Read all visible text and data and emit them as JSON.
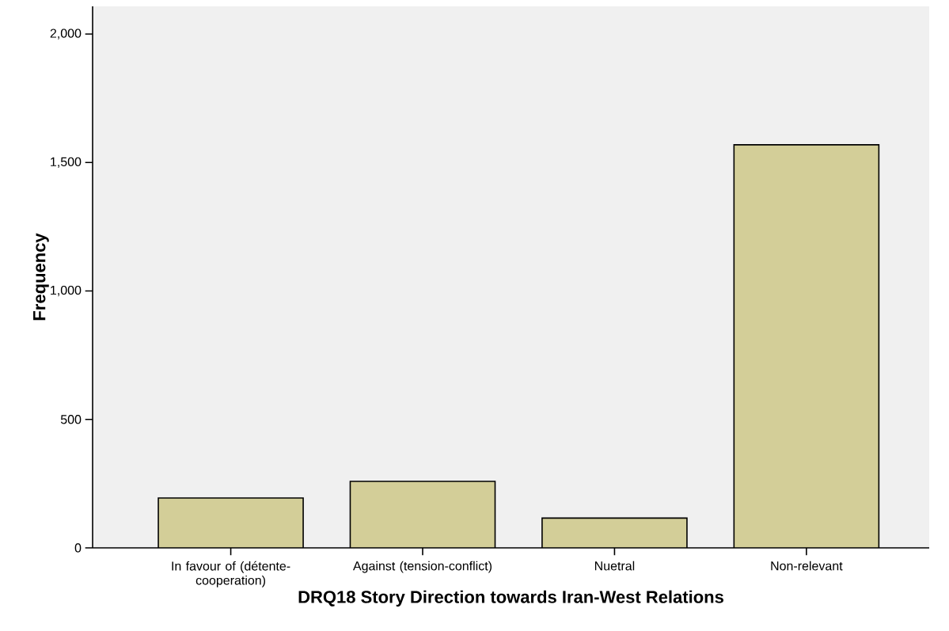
{
  "chart_data": {
    "type": "bar",
    "xlabel": "DRQ18 Story Direction towards Iran-West Relations",
    "ylabel": "Frequency",
    "categories": [
      "In favour of (détente-cooperation)",
      "Against (tension-conflict)",
      "Nuetral",
      "Non-relevant"
    ],
    "values": [
      194,
      259,
      116,
      1569
    ],
    "color": "#d3ce98",
    "ylim": [
      0,
      2108
    ],
    "yticks": [
      0,
      500,
      {
        "value": 1000,
        "label": "1,000"
      },
      {
        "value": 1500,
        "label": "1,500"
      },
      {
        "value": 2000,
        "label": "2,000"
      }
    ],
    "grid": false
  }
}
